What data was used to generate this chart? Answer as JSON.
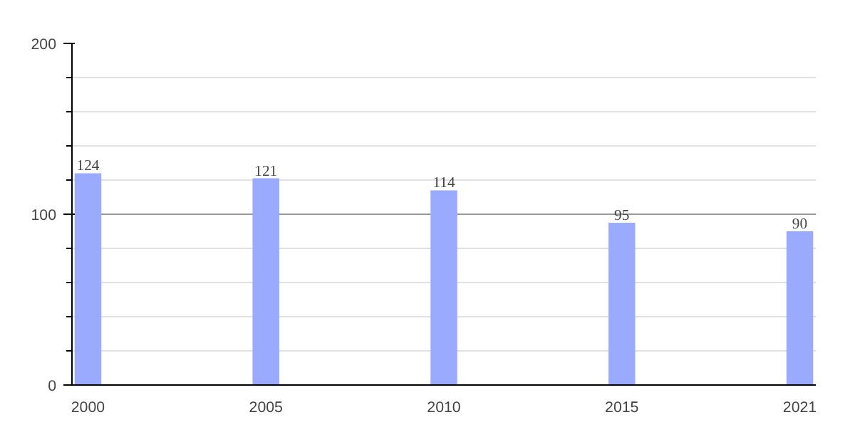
{
  "chart_data": {
    "type": "bar",
    "categories": [
      "2000",
      "2005",
      "2010",
      "2015",
      "2021"
    ],
    "values": [
      124,
      121,
      114,
      95,
      90
    ],
    "color": "#99aaff",
    "ylim": [
      0,
      200
    ],
    "yticks": [
      0,
      100,
      200
    ],
    "grid": "y",
    "data_labels": true
  }
}
